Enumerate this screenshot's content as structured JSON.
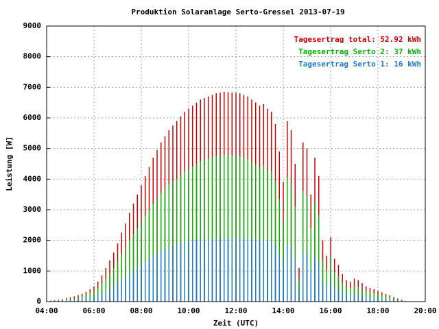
{
  "chart_data": {
    "type": "bar",
    "title": "Produktion Solaranlage Serto-Gressel 2013-07-19",
    "x_label": "Zeit (UTC)",
    "y_label": "Leistung [W]",
    "x": [
      240,
      250,
      260,
      270,
      280,
      290,
      300,
      310,
      320,
      330,
      340,
      350,
      360,
      370,
      380,
      390,
      400,
      410,
      420,
      430,
      440,
      450,
      460,
      470,
      480,
      490,
      500,
      510,
      520,
      530,
      540,
      550,
      560,
      570,
      580,
      590,
      600,
      610,
      620,
      630,
      640,
      650,
      660,
      670,
      680,
      690,
      700,
      710,
      720,
      730,
      740,
      750,
      760,
      770,
      780,
      790,
      800,
      810,
      820,
      830,
      840,
      850,
      860,
      870,
      880,
      890,
      900,
      910,
      920,
      930,
      940,
      950,
      960,
      970,
      980,
      990,
      1000,
      1010,
      1020,
      1030,
      1040,
      1050,
      1060,
      1070,
      1080,
      1090,
      1100,
      1110,
      1120,
      1130,
      1140,
      1150
    ],
    "series": [
      {
        "name": "Tagesertrag total: 52.92 kWh",
        "color": "#cc0000",
        "values": [
          20,
          30,
          40,
          60,
          80,
          110,
          140,
          170,
          210,
          250,
          320,
          400,
          500,
          650,
          850,
          1100,
          1350,
          1600,
          1900,
          2250,
          2550,
          2900,
          3200,
          3500,
          3800,
          4100,
          4400,
          4700,
          4950,
          5200,
          5400,
          5600,
          5750,
          5900,
          6050,
          6200,
          6300,
          6400,
          6500,
          6600,
          6650,
          6700,
          6750,
          6800,
          6820,
          6850,
          6840,
          6830,
          6820,
          6800,
          6750,
          6700,
          6600,
          6500,
          6400,
          6450,
          6300,
          6200,
          5800,
          4900,
          3900,
          5900,
          5600,
          4500,
          1100,
          5200,
          5000,
          3500,
          4700,
          4100,
          2000,
          1500,
          2100,
          1400,
          1200,
          900,
          700,
          650,
          750,
          700,
          600,
          500,
          450,
          400,
          350,
          300,
          250,
          200,
          150,
          100,
          60,
          20
        ]
      },
      {
        "name": "Tagesertrag Serto 2: 37 kWh",
        "color": "#00b400",
        "values": [
          10,
          20,
          25,
          40,
          55,
          75,
          95,
          115,
          145,
          170,
          220,
          275,
          340,
          440,
          580,
          750,
          920,
          1090,
          1300,
          1550,
          1750,
          2000,
          2200,
          2400,
          2600,
          2800,
          3000,
          3200,
          3370,
          3550,
          3680,
          3820,
          3920,
          4020,
          4130,
          4250,
          4330,
          4410,
          4500,
          4590,
          4630,
          4670,
          4710,
          4760,
          4770,
          4800,
          4790,
          4770,
          4760,
          4750,
          4700,
          4650,
          4560,
          4470,
          4380,
          4450,
          4320,
          4250,
          3950,
          3350,
          2650,
          4050,
          3850,
          3100,
          750,
          3600,
          3450,
          2400,
          3250,
          2820,
          1350,
          1020,
          1440,
          960,
          820,
          610,
          470,
          440,
          510,
          480,
          410,
          340,
          305,
          270,
          235,
          200,
          170,
          135,
          100,
          65,
          40,
          12
        ]
      },
      {
        "name": "Tagesertrag Serto 1: 16 kWh",
        "color": "#1a7ad4",
        "values": [
          10,
          10,
          15,
          20,
          25,
          35,
          45,
          55,
          65,
          80,
          100,
          125,
          160,
          210,
          270,
          350,
          430,
          510,
          600,
          700,
          800,
          900,
          1000,
          1100,
          1200,
          1300,
          1400,
          1500,
          1580,
          1650,
          1720,
          1780,
          1830,
          1880,
          1920,
          1950,
          1970,
          1990,
          2000,
          2010,
          2020,
          2030,
          2040,
          2040,
          2050,
          2050,
          2050,
          2060,
          2060,
          2050,
          2050,
          2050,
          2040,
          2030,
          2020,
          2000,
          1980,
          1950,
          1850,
          1550,
          1250,
          1850,
          1750,
          1400,
          350,
          1600,
          1550,
          1100,
          1450,
          1280,
          650,
          480,
          660,
          440,
          380,
          290,
          230,
          210,
          240,
          220,
          190,
          160,
          145,
          130,
          115,
          100,
          80,
          65,
          50,
          35,
          20,
          8
        ]
      }
    ],
    "xlim": [
      240,
      1200
    ],
    "xticks": [
      {
        "value": 240,
        "label": "04:00"
      },
      {
        "value": 360,
        "label": "06:00"
      },
      {
        "value": 480,
        "label": "08:00"
      },
      {
        "value": 600,
        "label": "10:00"
      },
      {
        "value": 720,
        "label": "12:00"
      },
      {
        "value": 840,
        "label": "14:00"
      },
      {
        "value": 960,
        "label": "16:00"
      },
      {
        "value": 1080,
        "label": "18:00"
      },
      {
        "value": 1200,
        "label": "20:00"
      }
    ],
    "ylim": [
      0,
      9000
    ],
    "yticks": [
      0,
      1000,
      2000,
      3000,
      4000,
      5000,
      6000,
      7000,
      8000,
      9000
    ],
    "grid": true,
    "legend": "top-right"
  }
}
